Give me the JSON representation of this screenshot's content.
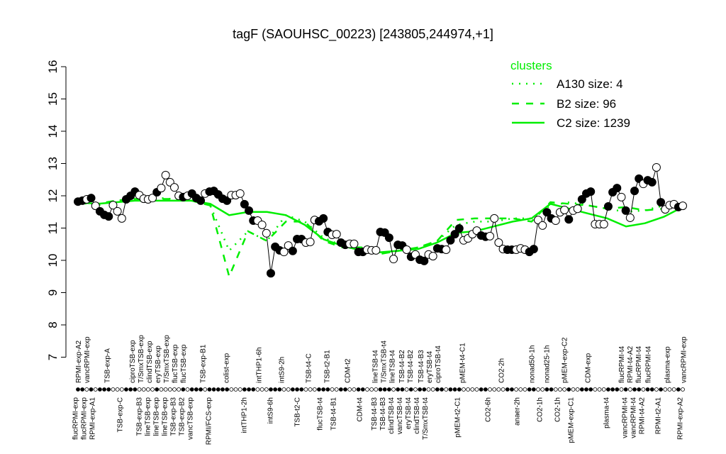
{
  "chart_data": {
    "type": "line",
    "title": "tagF (SAOUHSC_00223) [243805,244974,+1]",
    "xlabel": "",
    "ylabel": "",
    "ylim": [
      7,
      16
    ],
    "yticks": [
      7,
      8,
      9,
      10,
      11,
      12,
      13,
      14,
      15,
      16
    ],
    "grid": false,
    "legend": {
      "title": "clusters",
      "placement": "top-right",
      "entries": [
        {
          "label": "A130 size: 4",
          "style": "dotted"
        },
        {
          "label": "B2 size: 96",
          "style": "dashed"
        },
        {
          "label": "C2 size: 1239",
          "style": "solid"
        }
      ]
    },
    "colors": {
      "cluster": "#00ee00",
      "series": "#000000"
    },
    "series": [
      {
        "values": [
          11.82,
          11.85,
          11.89,
          11.93,
          11.69,
          11.52,
          11.41,
          11.36,
          11.71,
          11.52,
          11.3,
          11.89,
          12.0,
          12.13,
          12.02,
          11.91,
          11.89,
          11.93,
          12.11,
          12.24,
          12.64,
          12.42,
          12.26,
          12.0,
          11.96,
          12.0,
          12.07,
          11.93,
          11.85,
          12.07,
          12.13,
          12.15,
          12.04,
          11.91,
          11.85,
          12.02,
          12.02,
          12.07,
          11.74,
          11.54,
          11.23,
          11.23,
          11.1,
          10.84,
          9.6,
          10.42,
          10.31,
          10.26,
          10.46,
          10.29,
          10.66,
          10.66,
          10.55,
          10.57,
          11.25,
          11.21,
          11.3,
          10.88,
          10.79,
          10.81,
          10.55,
          10.48,
          10.51,
          10.51,
          10.26,
          10.26,
          10.33,
          10.31,
          10.31,
          10.88,
          10.86,
          10.7,
          10.04,
          10.48,
          10.46,
          10.33,
          10.11,
          10.18,
          10.02,
          9.98,
          10.18,
          10.13,
          10.37,
          10.35,
          10.33,
          10.62,
          10.81,
          10.99,
          10.62,
          10.68,
          10.81,
          10.92,
          10.77,
          10.73,
          10.75,
          11.3,
          10.55,
          10.35,
          10.33,
          10.33,
          10.33,
          10.37,
          10.33,
          10.26,
          10.35,
          11.25,
          11.08,
          11.49,
          11.3,
          11.23,
          11.49,
          11.56,
          11.27,
          11.54,
          11.6,
          11.89,
          12.07,
          12.13,
          11.12,
          11.12,
          11.12,
          11.67,
          12.11,
          12.24,
          11.96,
          11.54,
          11.32,
          12.15,
          12.53,
          12.37,
          12.48,
          12.42,
          12.88,
          11.8,
          11.58,
          11.71,
          11.74,
          11.65,
          11.69
        ],
        "filled": [
          1,
          1,
          0,
          1,
          0,
          1,
          1,
          1,
          0,
          0,
          0,
          1,
          1,
          1,
          0,
          0,
          0,
          0,
          1,
          0,
          0,
          0,
          0,
          0,
          1,
          0,
          1,
          1,
          1,
          0,
          1,
          1,
          1,
          1,
          1,
          0,
          0,
          0,
          1,
          1,
          1,
          0,
          0,
          0,
          1,
          1,
          1,
          0,
          0,
          1,
          1,
          1,
          0,
          0,
          0,
          1,
          1,
          1,
          0,
          0,
          1,
          1,
          0,
          0,
          1,
          1,
          0,
          0,
          0,
          1,
          1,
          1,
          0,
          1,
          1,
          0,
          1,
          0,
          1,
          1,
          0,
          0,
          1,
          1,
          0,
          1,
          1,
          1,
          0,
          0,
          0,
          0,
          1,
          1,
          0,
          0,
          0,
          0,
          1,
          1,
          0,
          0,
          0,
          1,
          1,
          0,
          0,
          1,
          1,
          0,
          0,
          0,
          1,
          0,
          0,
          1,
          1,
          1,
          0,
          0,
          0,
          1,
          1,
          1,
          0,
          1,
          0,
          1,
          1,
          0,
          1,
          1,
          0,
          1,
          0,
          0,
          0,
          1,
          0
        ]
      }
    ],
    "clusters": [
      {
        "name": "A130",
        "values": [
          11.8,
          11.7,
          11.85,
          11.9,
          11.95,
          11.9,
          11.85,
          11.7,
          10.3,
          10.9,
          10.6,
          11.4,
          11.2,
          10.7,
          10.45,
          10.35,
          10.2,
          10.3,
          10.4,
          10.6,
          11.1,
          11.2,
          11.2,
          11.3,
          11.3,
          11.7,
          11.8,
          11.7,
          11.6,
          11.5,
          11.55,
          11.7,
          11.7
        ]
      },
      {
        "name": "B2",
        "values": [
          11.8,
          11.75,
          11.85,
          11.9,
          11.9,
          11.9,
          11.85,
          11.7,
          9.5,
          10.9,
          10.6,
          11.2,
          11.2,
          10.6,
          10.4,
          10.4,
          10.2,
          10.3,
          10.4,
          10.6,
          11.25,
          11.3,
          11.3,
          11.3,
          11.2,
          11.8,
          11.75,
          11.7,
          11.6,
          11.65,
          11.55,
          11.6,
          11.65
        ]
      },
      {
        "name": "C2",
        "values": [
          11.8,
          11.75,
          11.8,
          11.85,
          11.85,
          11.85,
          11.85,
          11.75,
          11.4,
          11.5,
          11.5,
          11.4,
          11.1,
          10.65,
          10.45,
          10.3,
          10.25,
          10.3,
          10.35,
          10.55,
          10.85,
          10.9,
          11.05,
          11.2,
          11.3,
          11.75,
          11.6,
          11.45,
          11.3,
          11.05,
          11.15,
          11.35,
          11.65
        ]
      }
    ],
    "top_labels": [
      "RPMI-exp-A2",
      "vancRPMI-exp",
      "TSB-exp-A",
      "ciproTSB-exp",
      "T/SmxTSB-exp",
      "clindTSB-exp",
      "eryTSB-exp",
      "T/SmxTSB-exp",
      "flucTSB-exp",
      "flucTSB-exp",
      "TSB-exp-B1",
      "colist-exp",
      "intTHP1-6h",
      "intS9-2h",
      "TSB-t4-C",
      "TSB-t2-B1",
      "CDM-t2",
      "lineTSB-t4",
      "T/SmxTSB-t4",
      "lineTSB-t4",
      "TSB-t4-B2",
      "TSB-t4-B2",
      "TSB-t4-B3",
      "eryTSB-t4",
      "ciproTSB-t4",
      "pMEM-t4-C1",
      "CO2-2h",
      "nonad50-1h",
      "nonad25-1h",
      "pMEM-exp-C2",
      "CDM-exp",
      "flucRPMI-t4",
      "RPMI-t4-A2",
      "flucRPMI-t4",
      "flucRPMI-t4",
      "plasma-exp",
      "vancRPMI-exp"
    ],
    "bottom_labels": [
      "flucRPMI-exp",
      "flucRPMI-exp",
      "RPMI-exp-A1",
      "TSB-exp-C",
      "TSB-exp-B3",
      "lineTSB-exp",
      "lineTSB-exp",
      "lineTSB-exp",
      "TSB-exp-B3",
      "TSB-exp-B2",
      "vancTSB-exp",
      "RPMI/FCS-exp",
      "intTHP1-2h",
      "intS9-6h",
      "TSB-t2-C",
      "flucTSB-t4",
      "TSB-t4-B1",
      "CDM-t4",
      "TSB-t4-B3",
      "TSB-t4-B3",
      "clindTSB-t4",
      "vancTSB-t4",
      "eryTSB-t4",
      "clindTSB-t4",
      "T/SmxTSB-t4",
      "pMEM-t2-C1",
      "CO2-6h",
      "anaer-2h",
      "CO2-1h",
      "CO2-1h",
      "pMEM-exp-C1",
      "plasma-t4",
      "vancRPMI-t4",
      "vancRPMI-t4",
      "RPMI-t4-A2",
      "RPMI-t2-A1",
      "RPMI-exp-A2"
    ]
  }
}
